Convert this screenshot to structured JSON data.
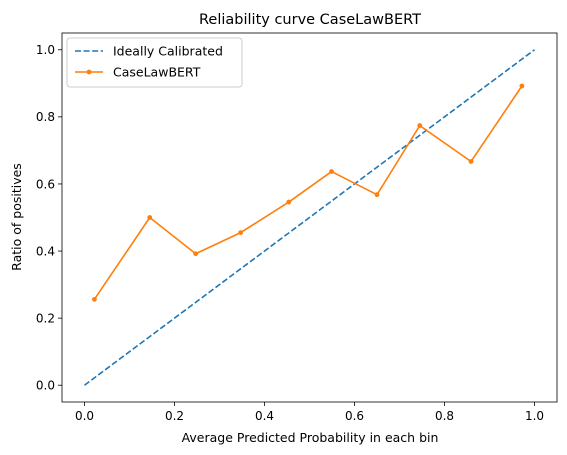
{
  "chart_data": {
    "type": "line",
    "title": "Reliability curve CaseLawBERT",
    "xlabel": "Average Predicted Probability in each bin",
    "ylabel": "Ratio of positives",
    "xlim": [
      -0.05,
      1.05
    ],
    "ylim": [
      -0.05,
      1.05
    ],
    "xticks": [
      0.0,
      0.2,
      0.4,
      0.6,
      0.8,
      1.0
    ],
    "xtick_labels": [
      "0.0",
      "0.2",
      "0.4",
      "0.6",
      "0.8",
      "1.0"
    ],
    "yticks": [
      0.0,
      0.2,
      0.4,
      0.6,
      0.8,
      1.0
    ],
    "ytick_labels": [
      "0.0",
      "0.2",
      "0.4",
      "0.6",
      "0.8",
      "1.0"
    ],
    "grid": false,
    "legend_position": "top-left",
    "series": [
      {
        "name": "Ideally Calibrated",
        "color": "#1f77b4",
        "style": "dashed",
        "markers": false,
        "x": [
          0.0,
          1.0
        ],
        "y": [
          0.0,
          1.0
        ]
      },
      {
        "name": "CaseLawBERT",
        "color": "#ff7f0e",
        "style": "solid",
        "markers": true,
        "x": [
          0.022,
          0.145,
          0.247,
          0.347,
          0.454,
          0.549,
          0.65,
          0.745,
          0.859,
          0.972
        ],
        "y": [
          0.256,
          0.5,
          0.392,
          0.455,
          0.546,
          0.637,
          0.568,
          0.774,
          0.667,
          0.892
        ]
      }
    ]
  }
}
